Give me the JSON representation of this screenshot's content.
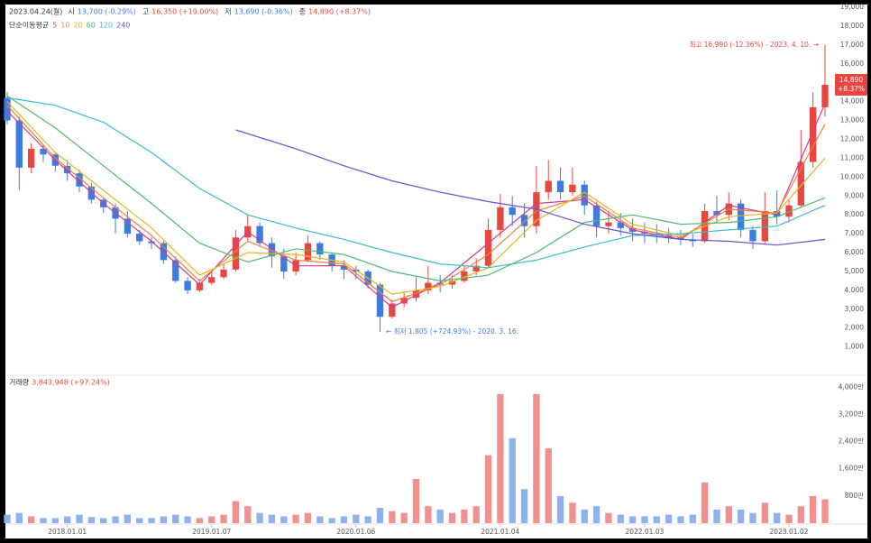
{
  "header": {
    "date": "2023.04.24(월)",
    "items": [
      {
        "label": "시",
        "value": "13,700 (-0.29%)",
        "color": "#3d7be0"
      },
      {
        "label": "고",
        "value": "16,350 (+19.00%)",
        "color": "#e8473f"
      },
      {
        "label": "저",
        "value": "13,690 (-0.36%)",
        "color": "#3d7be0"
      },
      {
        "label": "종",
        "value": "14,890 (+8.37%)",
        "color": "#e8473f"
      }
    ],
    "ma_title": "단순이동평균"
  },
  "chart_data": [
    {
      "type": "candlestick",
      "categories": [
        null,
        null,
        null,
        null,
        null,
        null,
        null,
        null,
        null,
        null,
        null,
        null,
        null,
        null,
        null,
        null,
        null,
        null,
        null,
        null,
        null,
        null,
        null,
        null,
        null,
        null,
        null,
        null,
        null,
        null,
        null,
        null,
        null,
        null,
        null,
        null,
        null,
        null,
        null,
        null,
        null,
        null,
        null,
        null,
        null,
        null,
        null,
        null,
        null,
        null,
        null,
        null,
        null,
        null,
        null,
        null,
        null,
        null,
        null,
        null,
        null,
        null,
        null,
        null,
        null,
        null,
        null,
        null,
        null
      ],
      "open": [
        14200,
        13000,
        10500,
        11500,
        11200,
        10600,
        10200,
        9500,
        8800,
        8400,
        7800,
        7000,
        6600,
        6500,
        5600,
        4500,
        4000,
        4400,
        4700,
        5100,
        6800,
        7400,
        6500,
        5800,
        5000,
        5600,
        6500,
        5900,
        5300,
        5100,
        5000,
        4300,
        2600,
        3300,
        3600,
        4000,
        4400,
        4300,
        4500,
        5000,
        5300,
        7200,
        8400,
        8000,
        7400,
        9200,
        9800,
        9200,
        9600,
        8500,
        7400,
        7600,
        7300,
        7100,
        7000,
        6900,
        6800,
        6700,
        6600,
        8200,
        8000,
        8600,
        7200,
        6600,
        8200,
        7900,
        8500,
        10800,
        13700
      ],
      "high": [
        14500,
        13200,
        11800,
        11700,
        11300,
        10900,
        10400,
        9700,
        8900,
        8600,
        8200,
        7200,
        6800,
        6600,
        5800,
        4700,
        4600,
        5000,
        5400,
        7200,
        8000,
        7600,
        6800,
        6200,
        6000,
        6900,
        6600,
        6000,
        5600,
        5300,
        5100,
        4400,
        3500,
        3900,
        4700,
        5300,
        4800,
        4800,
        5300,
        5700,
        7800,
        9100,
        9000,
        8600,
        10600,
        10900,
        10500,
        10500,
        9800,
        8700,
        8200,
        8100,
        7800,
        7600,
        7500,
        7300,
        7200,
        7000,
        8600,
        9000,
        9200,
        8800,
        7400,
        9200,
        9300,
        8800,
        12500,
        14500,
        16990
      ],
      "low": [
        12800,
        9300,
        10200,
        10800,
        10300,
        9800,
        9200,
        8600,
        8100,
        7000,
        6800,
        6400,
        6200,
        5400,
        4400,
        3800,
        3900,
        4300,
        4600,
        5000,
        6600,
        6300,
        5200,
        4600,
        4800,
        5500,
        5600,
        5000,
        4600,
        4600,
        4100,
        1805,
        2500,
        3100,
        3400,
        3800,
        3900,
        4100,
        4400,
        4800,
        5200,
        6800,
        7400,
        6800,
        7000,
        8800,
        8800,
        9000,
        8000,
        6800,
        7000,
        6900,
        6600,
        6500,
        6500,
        6500,
        6400,
        6300,
        6500,
        7600,
        7700,
        6800,
        6200,
        6500,
        7500,
        7600,
        8400,
        10500,
        13200
      ],
      "close": [
        13000,
        10500,
        11500,
        11200,
        10600,
        10200,
        9500,
        8800,
        8400,
        7800,
        7000,
        6600,
        6500,
        5600,
        4500,
        4000,
        4400,
        4700,
        5100,
        6800,
        7400,
        6500,
        5800,
        5000,
        5600,
        6500,
        5900,
        5300,
        5100,
        5000,
        4300,
        2600,
        3300,
        3600,
        4000,
        4400,
        4300,
        4500,
        5000,
        5300,
        7200,
        8400,
        8000,
        7400,
        9200,
        9800,
        9200,
        9600,
        8500,
        7400,
        7600,
        7300,
        7100,
        7000,
        6900,
        6800,
        6700,
        6600,
        8200,
        8000,
        8600,
        7200,
        6600,
        8200,
        7900,
        8500,
        10800,
        13700,
        14890
      ],
      "up_color": "#e8473f",
      "down_color": "#3d7be0",
      "ylim": [
        -450,
        19000
      ],
      "grid": false,
      "yticks": [
        {
          "value": 1000,
          "label": "1,000"
        },
        {
          "value": 2000,
          "label": "2,000"
        },
        {
          "value": 3000,
          "label": "3,000"
        },
        {
          "value": 4000,
          "label": "4,000"
        },
        {
          "value": 5000,
          "label": "5,000"
        },
        {
          "value": 6000,
          "label": "6,000"
        },
        {
          "value": 7000,
          "label": "7,000"
        },
        {
          "value": 8000,
          "label": "8,000"
        },
        {
          "value": 9000,
          "label": "9,000"
        },
        {
          "value": 10000,
          "label": "10,000"
        },
        {
          "value": 11000,
          "label": "11,000"
        },
        {
          "value": 12000,
          "label": "12,000"
        },
        {
          "value": 13000,
          "label": "13,000"
        },
        {
          "value": 14000,
          "label": "14,000"
        },
        {
          "value": 15000,
          "label": "15,000"
        },
        {
          "value": 16000,
          "label": "16,000"
        },
        {
          "value": 17000,
          "label": "17,000"
        },
        {
          "value": 18000,
          "label": "18,000"
        },
        {
          "value": 19000,
          "label": "19,000"
        }
      ],
      "moving_averages": [
        {
          "name": "5",
          "color": "#d23c8c",
          "x": [
            0,
            4,
            8,
            12,
            16,
            20,
            24,
            28,
            32,
            36,
            40,
            44,
            48,
            52,
            56,
            60,
            64,
            68
          ],
          "values": [
            13500,
            10900,
            8600,
            6600,
            4300,
            7100,
            5300,
            5300,
            3100,
            4400,
            6500,
            8600,
            8800,
            7200,
            6700,
            8500,
            8000,
            13900
          ]
        },
        {
          "name": "10",
          "color": "#f07f3c",
          "x": [
            0,
            4,
            8,
            12,
            16,
            20,
            24,
            28,
            32,
            36,
            40,
            44,
            48,
            52,
            56,
            60,
            64,
            68
          ],
          "values": [
            13800,
            11000,
            8900,
            6900,
            4500,
            6600,
            5600,
            5400,
            3400,
            4300,
            5900,
            8200,
            9000,
            7300,
            6800,
            8300,
            8100,
            12800
          ]
        },
        {
          "name": "20",
          "color": "#e6b422",
          "x": [
            0,
            4,
            8,
            12,
            16,
            20,
            24,
            28,
            32,
            36,
            40,
            44,
            48,
            52,
            56,
            60,
            64,
            68
          ],
          "values": [
            14000,
            11300,
            9300,
            7300,
            4800,
            6000,
            5900,
            5500,
            3800,
            4200,
            5200,
            7700,
            9200,
            7500,
            6900,
            7900,
            8100,
            11000
          ]
        },
        {
          "name": "60",
          "color": "#4cbb6c",
          "x": [
            0,
            4,
            8,
            12,
            16,
            20,
            24,
            28,
            32,
            36,
            40,
            44,
            48,
            52,
            56,
            60,
            64,
            68
          ],
          "values": [
            14300,
            12600,
            10600,
            8600,
            6500,
            5500,
            6200,
            5900,
            5000,
            4500,
            4800,
            6000,
            7600,
            8000,
            7500,
            7600,
            7900,
            8900
          ]
        },
        {
          "name": "120",
          "color": "#3cbcc8",
          "x": [
            0,
            4,
            8,
            12,
            16,
            20,
            24,
            28,
            32,
            36,
            40,
            44,
            48,
            52,
            56,
            60,
            64,
            68
          ],
          "values": [
            14200,
            13800,
            12900,
            11300,
            9400,
            8000,
            7300,
            6700,
            6000,
            5400,
            5200,
            5600,
            6300,
            6900,
            7000,
            7200,
            7400,
            8500
          ]
        },
        {
          "name": "240",
          "color": "#6a4fd2",
          "x": [
            19,
            24,
            28,
            32,
            36,
            40,
            44,
            48,
            52,
            56,
            60,
            64,
            68
          ],
          "values": [
            12500,
            11500,
            10600,
            9800,
            9200,
            8700,
            8300,
            7500,
            7000,
            6700,
            6600,
            6400,
            6700
          ]
        }
      ],
      "annotations": {
        "high": "최고 16,990 (-12.36%) - 2023. 4. 10. →",
        "low": "← 최저 1,805 (+724.93%) - 2020. 3. 16."
      },
      "badge": {
        "price": "14,890",
        "change": "+8.37%"
      }
    },
    {
      "type": "bar",
      "title": "거래량",
      "title_value": "3,843,948 (+97.24%)",
      "title_color": "#e8473f",
      "values": [
        2500000,
        3000000,
        2000000,
        1500000,
        1500000,
        2000000,
        2500000,
        1800000,
        1500000,
        2000000,
        2500000,
        1500000,
        1500000,
        2000000,
        2500000,
        2000000,
        1500000,
        2000000,
        2500000,
        6500000,
        5000000,
        3000000,
        2500000,
        2000000,
        2500000,
        3000000,
        2000000,
        1500000,
        2000000,
        2500000,
        2000000,
        4500000,
        3500000,
        3000000,
        13000000,
        5000000,
        4000000,
        3000000,
        4000000,
        5000000,
        20000000,
        38000000,
        25000000,
        10000000,
        38000000,
        22000000,
        8000000,
        6000000,
        4000000,
        5000000,
        3000000,
        2500000,
        2000000,
        2000000,
        2000000,
        2500000,
        2000000,
        2500000,
        12000000,
        4000000,
        5000000,
        4000000,
        3000000,
        6000000,
        3000000,
        2500000,
        5000000,
        8000000,
        7000000
      ],
      "up_color": "#f29090",
      "down_color": "#8fb2ee",
      "ylim": [
        0,
        43000000
      ],
      "yticks": [
        {
          "value": 8000000,
          "label": "800만"
        },
        {
          "value": 16000000,
          "label": "1,600만"
        },
        {
          "value": 24000000,
          "label": "2,400만"
        },
        {
          "value": 32000000,
          "label": "3,200만"
        },
        {
          "value": 40000000,
          "label": "4,000만"
        }
      ],
      "xticks": [
        {
          "value": 5,
          "label": "2018.01.01"
        },
        {
          "value": 17,
          "label": "2019.01.07"
        },
        {
          "value": 29,
          "label": "2020.01.06"
        },
        {
          "value": 41,
          "label": "2021.01.04"
        },
        {
          "value": 53,
          "label": "2022.01.03"
        },
        {
          "value": 65,
          "label": "2023.01.02"
        }
      ]
    }
  ]
}
